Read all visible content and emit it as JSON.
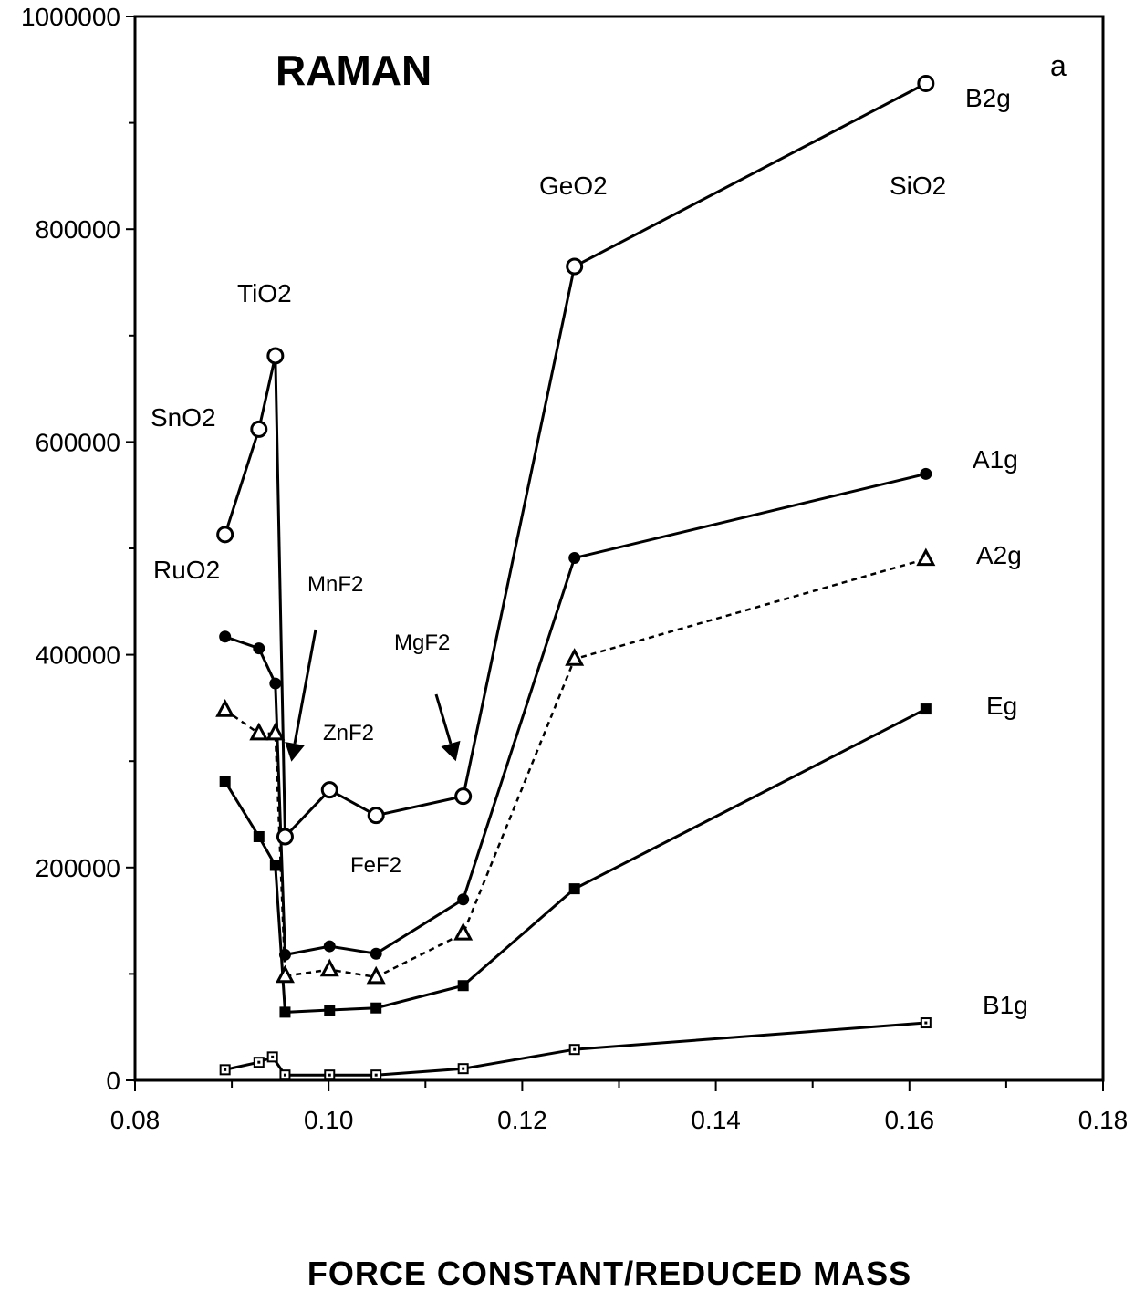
{
  "chart_data": {
    "type": "line",
    "title": "RAMAN",
    "panel_label": "a",
    "xlabel": "FORCE CONSTANT/REDUCED MASS",
    "ylabel": "",
    "xlim": [
      0.08,
      0.18
    ],
    "ylim": [
      0,
      1000000
    ],
    "xticks": [
      "0.08",
      "0.10",
      "0.12",
      "0.14",
      "0.16",
      "0.18"
    ],
    "yticks": [
      "0",
      "200000",
      "400000",
      "600000",
      "800000",
      "1000000"
    ],
    "grid": false,
    "legend": "none",
    "series": [
      {
        "name": "B2g",
        "marker": "open-circle",
        "dashed": false,
        "x": [
          0.0893,
          0.0928,
          0.0945,
          0.0955,
          0.1001,
          0.1049,
          0.1139,
          0.1254,
          0.1617
        ],
        "y": [
          513000,
          612000,
          681000,
          229000,
          273000,
          249000,
          267000,
          765000,
          937000
        ]
      },
      {
        "name": "A1g",
        "marker": "filled-circle",
        "dashed": false,
        "x": [
          0.0893,
          0.0928,
          0.0945,
          0.0955,
          0.1001,
          0.1049,
          0.1139,
          0.1254,
          0.1617
        ],
        "y": [
          417000,
          406000,
          373000,
          118000,
          126000,
          119000,
          170000,
          491000,
          570000
        ]
      },
      {
        "name": "A2g",
        "marker": "open-triangle",
        "dashed": true,
        "x": [
          0.0893,
          0.0928,
          0.0945,
          0.0955,
          0.1001,
          0.1049,
          0.1139,
          0.1254,
          0.1617
        ],
        "y": [
          348000,
          326000,
          326000,
          98000,
          104000,
          97000,
          138000,
          396000,
          490000
        ]
      },
      {
        "name": "Eg",
        "marker": "filled-square",
        "dashed": false,
        "x": [
          0.0893,
          0.0928,
          0.0945,
          0.0955,
          0.1001,
          0.1049,
          0.1139,
          0.1254,
          0.1617
        ],
        "y": [
          281000,
          229000,
          202000,
          64000,
          66000,
          68000,
          89000,
          180000,
          349000
        ]
      },
      {
        "name": "B1g",
        "marker": "dotted-square",
        "dashed": false,
        "x": [
          0.0893,
          0.0928,
          0.0942,
          0.0955,
          0.1001,
          0.1049,
          0.1139,
          0.1254,
          0.1617
        ],
        "y": [
          10000,
          17000,
          22000,
          5000,
          5000,
          5000,
          11000,
          29000,
          54000
        ]
      }
    ],
    "annotations": {
      "compounds": [
        {
          "text": "RuO2",
          "size": "normal"
        },
        {
          "text": "SnO2",
          "size": "normal"
        },
        {
          "text": "TiO2",
          "size": "normal"
        },
        {
          "text": "MnF2",
          "size": "small"
        },
        {
          "text": "ZnF2",
          "size": "small"
        },
        {
          "text": "FeF2",
          "size": "small"
        },
        {
          "text": "MgF2",
          "size": "small"
        },
        {
          "text": "GeO2",
          "size": "normal"
        },
        {
          "text": "SiO2",
          "size": "normal"
        }
      ],
      "arrows": [
        "MnF2",
        "MgF2"
      ]
    }
  }
}
